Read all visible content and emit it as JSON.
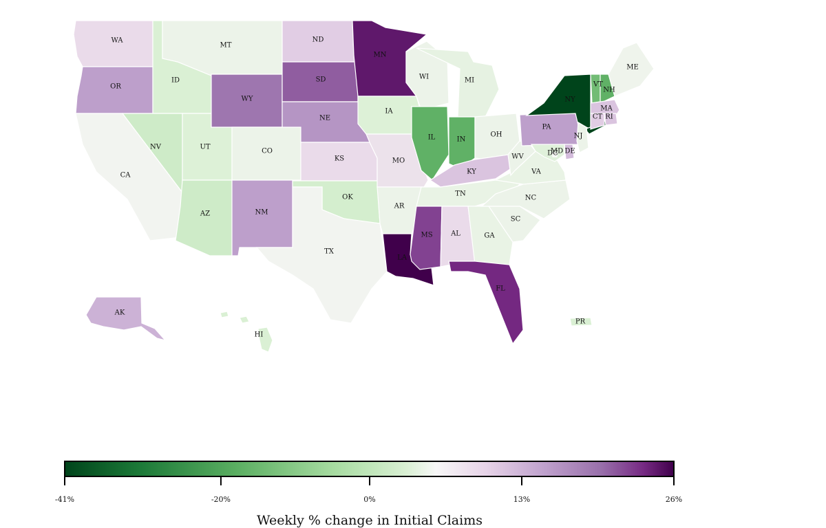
{
  "legend": {
    "title": "Weekly % change in Initial Claims",
    "ticks": [
      {
        "label": "-41%",
        "value": -41
      },
      {
        "label": "-20%",
        "value": -20
      },
      {
        "label": "0%",
        "value": 0
      },
      {
        "label": "13%",
        "value": 13
      },
      {
        "label": "26%",
        "value": 26
      }
    ]
  },
  "states": [
    {
      "code": "WA",
      "value": 4
    },
    {
      "code": "OR",
      "value": 11
    },
    {
      "code": "CA",
      "value": 0
    },
    {
      "code": "ID",
      "value": -8
    },
    {
      "code": "NV",
      "value": -10
    },
    {
      "code": "UT",
      "value": -7
    },
    {
      "code": "AZ",
      "value": -10
    },
    {
      "code": "MT",
      "value": -2
    },
    {
      "code": "WY",
      "value": 15
    },
    {
      "code": "CO",
      "value": -2
    },
    {
      "code": "NM",
      "value": 11
    },
    {
      "code": "ND",
      "value": 6
    },
    {
      "code": "SD",
      "value": 17
    },
    {
      "code": "NE",
      "value": 12
    },
    {
      "code": "KS",
      "value": 4
    },
    {
      "code": "OK",
      "value": -9
    },
    {
      "code": "TX",
      "value": 0
    },
    {
      "code": "MN",
      "value": 23
    },
    {
      "code": "IA",
      "value": -7
    },
    {
      "code": "MO",
      "value": 3
    },
    {
      "code": "AR",
      "value": -2
    },
    {
      "code": "LA",
      "value": 26
    },
    {
      "code": "WI",
      "value": -2
    },
    {
      "code": "IL",
      "value": -24
    },
    {
      "code": "MS",
      "value": 19
    },
    {
      "code": "MI",
      "value": -4
    },
    {
      "code": "IN",
      "value": -24
    },
    {
      "code": "OH",
      "value": -2
    },
    {
      "code": "KY",
      "value": 7
    },
    {
      "code": "TN",
      "value": -3
    },
    {
      "code": "AL",
      "value": 4
    },
    {
      "code": "GA",
      "value": -3
    },
    {
      "code": "FL",
      "value": 21
    },
    {
      "code": "SC",
      "value": -2
    },
    {
      "code": "NC",
      "value": -2
    },
    {
      "code": "VA",
      "value": -3
    },
    {
      "code": "WV",
      "value": -2
    },
    {
      "code": "PA",
      "value": 11
    },
    {
      "code": "NY",
      "value": -41
    },
    {
      "code": "VT",
      "value": -22
    },
    {
      "code": "NH",
      "value": -24
    },
    {
      "code": "ME",
      "value": -1
    },
    {
      "code": "MA",
      "value": 7
    },
    {
      "code": "CT",
      "value": 6
    },
    {
      "code": "RI",
      "value": 7
    },
    {
      "code": "NJ",
      "value": -2
    },
    {
      "code": "DE",
      "value": 8
    },
    {
      "code": "MD",
      "value": -6
    },
    {
      "code": "DC",
      "value": 0
    },
    {
      "code": "AK",
      "value": 9
    },
    {
      "code": "HI",
      "value": -8
    },
    {
      "code": "PR",
      "value": -8
    }
  ]
}
